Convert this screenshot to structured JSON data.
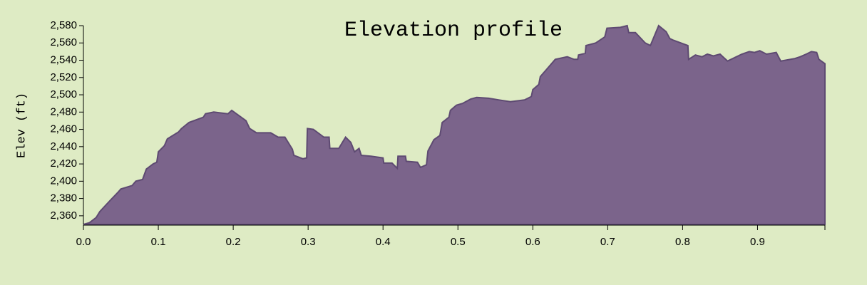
{
  "chart_data": {
    "type": "area",
    "title": "Elevation profile",
    "ylabel": "Elev (ft)",
    "color": "#7b648b",
    "x": [
      0.0,
      0.008,
      0.017,
      0.022,
      0.036,
      0.046,
      0.05,
      0.065,
      0.07,
      0.079,
      0.084,
      0.093,
      0.098,
      0.1,
      0.108,
      0.112,
      0.127,
      0.131,
      0.141,
      0.16,
      0.163,
      0.174,
      0.193,
      0.198,
      0.217,
      0.222,
      0.231,
      0.25,
      0.26,
      0.269,
      0.279,
      0.281,
      0.293,
      0.298,
      0.299,
      0.307,
      0.321,
      0.328,
      0.329,
      0.341,
      0.35,
      0.357,
      0.362,
      0.368,
      0.371,
      0.384,
      0.4,
      0.401,
      0.412,
      0.419,
      0.42,
      0.43,
      0.431,
      0.446,
      0.45,
      0.458,
      0.46,
      0.468,
      0.476,
      0.479,
      0.488,
      0.49,
      0.498,
      0.506,
      0.517,
      0.525,
      0.541,
      0.555,
      0.57,
      0.589,
      0.598,
      0.6,
      0.608,
      0.61,
      0.622,
      0.63,
      0.646,
      0.655,
      0.66,
      0.661,
      0.67,
      0.671,
      0.684,
      0.696,
      0.699,
      0.717,
      0.726,
      0.728,
      0.737,
      0.75,
      0.757,
      0.768,
      0.778,
      0.783,
      0.788,
      0.807,
      0.808,
      0.817,
      0.826,
      0.833,
      0.841,
      0.85,
      0.86,
      0.879,
      0.889,
      0.896,
      0.903,
      0.912,
      0.925,
      0.931,
      0.95,
      0.957,
      0.965,
      0.972,
      0.979,
      0.982,
      0.99
    ],
    "values": [
      2350,
      2352,
      2358,
      2365,
      2378,
      2387,
      2391,
      2395,
      2400,
      2402,
      2414,
      2420,
      2422,
      2434,
      2441,
      2449,
      2457,
      2461,
      2468,
      2474,
      2478,
      2480,
      2478,
      2482,
      2470,
      2461,
      2456,
      2456,
      2451,
      2451,
      2437,
      2430,
      2426,
      2427,
      2461,
      2460,
      2451,
      2451,
      2438,
      2438,
      2451,
      2445,
      2434,
      2438,
      2430,
      2429,
      2427,
      2421,
      2421,
      2415,
      2429,
      2429,
      2423,
      2422,
      2416,
      2419,
      2435,
      2448,
      2453,
      2468,
      2474,
      2482,
      2488,
      2490,
      2495,
      2497,
      2496,
      2494,
      2492,
      2494,
      2498,
      2506,
      2512,
      2521,
      2533,
      2541,
      2544,
      2541,
      2541,
      2546,
      2548,
      2557,
      2560,
      2567,
      2577,
      2578,
      2580,
      2572,
      2572,
      2560,
      2557,
      2580,
      2573,
      2565,
      2563,
      2557,
      2541,
      2546,
      2544,
      2547,
      2545,
      2547,
      2539,
      2547,
      2550,
      2549,
      2551,
      2547,
      2549,
      2539,
      2542,
      2544,
      2547,
      2550,
      2549,
      2541,
      2536
    ],
    "xlim": [
      0,
      0.99
    ],
    "ylim": [
      2350,
      2580
    ],
    "xticks": [
      {
        "value": 0,
        "label": "0.0"
      },
      0.1,
      0.2,
      0.3,
      0.4,
      0.5,
      0.6,
      0.7,
      0.8,
      0.9
    ],
    "yticks": [
      {
        "value": 2360,
        "label": "2,360"
      },
      {
        "value": 2380,
        "label": "2,380"
      },
      {
        "value": 2400,
        "label": "2,400"
      },
      {
        "value": 2420,
        "label": "2,420"
      },
      {
        "value": 2440,
        "label": "2,440"
      },
      {
        "value": 2460,
        "label": "2,460"
      },
      {
        "value": 2480,
        "label": "2,480"
      },
      {
        "value": 2500,
        "label": "2,500"
      },
      {
        "value": 2520,
        "label": "2,520"
      },
      {
        "value": 2540,
        "label": "2,540"
      },
      {
        "value": 2560,
        "label": "2,560"
      },
      {
        "value": 2580,
        "label": "2,580"
      }
    ]
  }
}
